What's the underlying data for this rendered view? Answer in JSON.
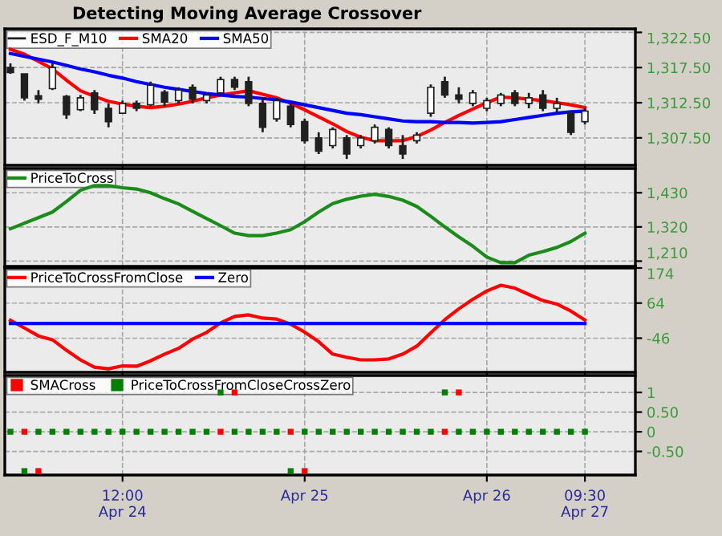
{
  "chart_data": [
    {
      "type": "candlestick",
      "title": "Detecting Moving Average Crossover",
      "ylim": [
        1303.6,
        1323
      ],
      "categories": [
        null,
        null,
        null,
        null,
        null,
        null,
        null,
        null,
        null,
        null,
        null,
        null,
        null,
        null,
        null,
        null,
        null,
        null,
        null,
        null,
        null,
        null,
        null,
        null,
        null,
        null,
        null,
        null,
        null,
        null,
        null,
        null,
        null,
        null,
        null,
        null,
        null,
        null,
        null,
        null,
        null,
        null
      ],
      "yticks": [
        {
          "value": 1307.5,
          "label": "1,307.50"
        },
        {
          "value": 1312.5,
          "label": "1,312.50"
        },
        {
          "value": 1317.5,
          "label": "1,317.50"
        },
        {
          "value": 1322.5,
          "label": "1,322.50"
        }
      ],
      "grid": true,
      "legend": "top left",
      "tick_labels": "y",
      "series": [
        {
          "name": "ESD_F_M10",
          "type": "candlestick",
          "color": "#202020",
          "ohlc": [
            [
              1317.5,
              1318.1,
              1316.6,
              1316.8
            ],
            [
              1316.6,
              1316.6,
              1312.8,
              1313.2
            ],
            [
              1313.5,
              1314.3,
              1312.4,
              1313.0
            ],
            [
              1314.5,
              1318.1,
              1314.3,
              1317.5
            ],
            [
              1313.4,
              1313.6,
              1310.2,
              1310.8
            ],
            [
              1311.5,
              1313.6,
              1311.3,
              1313.2
            ],
            [
              1313.9,
              1314.3,
              1310.9,
              1311.5
            ],
            [
              1311.7,
              1312.4,
              1309.0,
              1309.8
            ],
            [
              1311.0,
              1312.8,
              1310.9,
              1312.4
            ],
            [
              1312.4,
              1312.8,
              1311.3,
              1311.7
            ],
            [
              1312.2,
              1315.5,
              1312.0,
              1315.0
            ],
            [
              1314.0,
              1314.3,
              1312.0,
              1312.6
            ],
            [
              1312.8,
              1314.7,
              1312.4,
              1314.3
            ],
            [
              1314.7,
              1315.1,
              1312.4,
              1313.0
            ],
            [
              1312.8,
              1313.9,
              1312.4,
              1313.6
            ],
            [
              1313.9,
              1316.2,
              1313.6,
              1315.8
            ],
            [
              1315.8,
              1316.2,
              1314.3,
              1314.7
            ],
            [
              1315.5,
              1316.2,
              1312.0,
              1312.4
            ],
            [
              1312.4,
              1313.2,
              1308.3,
              1309.0
            ],
            [
              1310.2,
              1313.2,
              1309.8,
              1312.8
            ],
            [
              1312.0,
              1312.4,
              1309.0,
              1309.4
            ],
            [
              1309.8,
              1310.2,
              1306.7,
              1307.1
            ],
            [
              1307.5,
              1308.3,
              1305.2,
              1305.6
            ],
            [
              1306.4,
              1309.0,
              1306.0,
              1308.7
            ],
            [
              1307.5,
              1307.9,
              1304.5,
              1305.2
            ],
            [
              1306.4,
              1307.9,
              1306.0,
              1307.5
            ],
            [
              1307.1,
              1309.4,
              1306.7,
              1309.0
            ],
            [
              1308.7,
              1309.0,
              1306.0,
              1306.4
            ],
            [
              1306.4,
              1307.9,
              1304.5,
              1305.2
            ],
            [
              1307.1,
              1308.3,
              1306.7,
              1307.9
            ],
            [
              1311.0,
              1315.1,
              1310.5,
              1314.7
            ],
            [
              1315.5,
              1316.2,
              1313.2,
              1313.6
            ],
            [
              1313.6,
              1314.7,
              1312.4,
              1313.0
            ],
            [
              1312.4,
              1314.3,
              1312.0,
              1313.9
            ],
            [
              1311.7,
              1313.2,
              1311.3,
              1312.8
            ],
            [
              1312.4,
              1313.9,
              1312.0,
              1313.6
            ],
            [
              1313.9,
              1314.3,
              1312.0,
              1312.4
            ],
            [
              1312.4,
              1313.9,
              1311.7,
              1313.2
            ],
            [
              1313.6,
              1314.3,
              1311.3,
              1311.7
            ],
            [
              1311.7,
              1313.2,
              1310.9,
              1312.4
            ],
            [
              1311.0,
              1311.3,
              1307.9,
              1308.3
            ],
            [
              1309.8,
              1311.7,
              1309.4,
              1311.3
            ]
          ]
        },
        {
          "name": "SMA20",
          "type": "line",
          "color": "#ff0000",
          "values": [
            1320.1,
            1319.4,
            1318.4,
            1317.3,
            1315.7,
            1314.2,
            1313.4,
            1312.7,
            1312.3,
            1312.0,
            1311.8,
            1312.0,
            1312.3,
            1312.7,
            1313.2,
            1313.6,
            1313.9,
            1314.2,
            1313.7,
            1313.2,
            1312.4,
            1311.5,
            1310.5,
            1309.5,
            1308.4,
            1307.6,
            1307.1,
            1307.1,
            1307.1,
            1307.7,
            1308.6,
            1309.7,
            1310.7,
            1311.6,
            1312.5,
            1313.3,
            1313.2,
            1313.0,
            1312.8,
            1312.5,
            1312.2,
            1311.8
          ]
        },
        {
          "name": "SMA50",
          "type": "line",
          "color": "#0000ff",
          "values": [
            1319.5,
            1319.1,
            1318.7,
            1318.3,
            1317.8,
            1317.3,
            1316.9,
            1316.4,
            1316.0,
            1315.5,
            1315.1,
            1314.7,
            1314.4,
            1314.1,
            1313.8,
            1313.6,
            1313.4,
            1313.3,
            1313.1,
            1312.9,
            1312.6,
            1312.2,
            1311.8,
            1311.4,
            1311.0,
            1310.8,
            1310.5,
            1310.2,
            1309.9,
            1309.8,
            1309.8,
            1309.7,
            1309.7,
            1309.6,
            1309.7,
            1309.8,
            1310.1,
            1310.4,
            1310.7,
            1311.0,
            1311.2,
            1311.3
          ]
        }
      ]
    },
    {
      "type": "line",
      "ylim": [
        1193,
        1508
      ],
      "categories": [
        null,
        null,
        null,
        null,
        null,
        null,
        null,
        null,
        null,
        null,
        null,
        null,
        null,
        null,
        null,
        null,
        null,
        null,
        null,
        null,
        null,
        null,
        null,
        null,
        null,
        null,
        null,
        null,
        null,
        null,
        null,
        null,
        null,
        null,
        null,
        null,
        null,
        null,
        null,
        null,
        null,
        null
      ],
      "yticks": [
        {
          "value": 1210,
          "label": "1,210"
        },
        {
          "value": 1320,
          "label": "1,320"
        },
        {
          "value": 1430,
          "label": "1,430"
        }
      ],
      "grid": true,
      "legend": "top left",
      "tick_labels": "y",
      "series": [
        {
          "name": "PriceToCross",
          "color": "#1a8c1a",
          "values": [
            1314,
            1332,
            1350,
            1368,
            1402,
            1438,
            1453,
            1453,
            1446,
            1442,
            1430,
            1411,
            1394,
            1370,
            1347,
            1324,
            1300,
            1292,
            1292,
            1300,
            1311,
            1337,
            1368,
            1395,
            1409,
            1419,
            1425,
            1418,
            1406,
            1386,
            1354,
            1320,
            1288,
            1258,
            1223,
            1205,
            1205,
            1229,
            1241,
            1254,
            1273,
            1300
          ]
        }
      ]
    },
    {
      "type": "line",
      "ylim": [
        -153,
        174
      ],
      "categories": [
        null,
        null,
        null,
        null,
        null,
        null,
        null,
        null,
        null,
        null,
        null,
        null,
        null,
        null,
        null,
        null,
        null,
        null,
        null,
        null,
        null,
        null,
        null,
        null,
        null,
        null,
        null,
        null,
        null,
        null,
        null,
        null,
        null,
        null,
        null,
        null,
        null,
        null,
        null,
        null,
        null,
        null
      ],
      "yticks": [
        -46,
        64,
        174
      ],
      "grid": true,
      "legend": "top left",
      "tick_labels": "y",
      "series": [
        {
          "name": "PriceToCrossFromClose",
          "color": "#ff0000",
          "values": [
            10,
            -14,
            -39,
            -51,
            -84,
            -114,
            -137,
            -142,
            -133,
            -134,
            -117,
            -96,
            -78,
            -49,
            -28,
            2,
            22,
            27,
            17,
            14,
            -2,
            -27,
            -57,
            -96,
            -106,
            -114,
            -114,
            -111,
            -96,
            -71,
            -29,
            12,
            46,
            76,
            102,
            120,
            111,
            91,
            72,
            61,
            39,
            11
          ]
        },
        {
          "name": "Zero",
          "color": "#0000ff",
          "values": [
            0,
            0,
            0,
            0,
            0,
            0,
            0,
            0,
            0,
            0,
            0,
            0,
            0,
            0,
            0,
            0,
            0,
            0,
            0,
            0,
            0,
            0,
            0,
            0,
            0,
            0,
            0,
            0,
            0,
            0,
            0,
            0,
            0,
            0,
            0,
            0,
            0,
            0,
            0,
            0,
            0,
            0
          ]
        }
      ]
    },
    {
      "type": "scatter",
      "ylim": [
        -1.1,
        1.43
      ],
      "marker": "square",
      "categories": [
        null,
        null,
        null,
        null,
        null,
        null,
        null,
        null,
        "12:00\nApr 24",
        null,
        null,
        null,
        null,
        null,
        null,
        null,
        null,
        null,
        null,
        null,
        null,
        "Apr 25",
        null,
        null,
        null,
        null,
        null,
        null,
        null,
        null,
        null,
        null,
        null,
        null,
        "Apr 26",
        null,
        null,
        null,
        null,
        null,
        null,
        "09:30\nApr 27"
      ],
      "yticks": [
        {
          "value": -0.5,
          "label": "-0.50"
        },
        0,
        {
          "value": 0.5,
          "label": "0.50"
        },
        1
      ],
      "grid": true,
      "legend": "top left",
      "series": [
        {
          "name": "SMACross",
          "color": "#ff0000",
          "values": [
            null,
            0,
            -1,
            null,
            null,
            null,
            null,
            null,
            null,
            null,
            null,
            null,
            null,
            null,
            null,
            0,
            1,
            null,
            null,
            null,
            0,
            -1,
            null,
            null,
            null,
            null,
            null,
            null,
            null,
            null,
            null,
            0,
            1,
            null,
            null,
            null,
            null,
            null,
            null,
            null,
            null,
            null
          ]
        },
        {
          "name": "PriceToCrossFromCloseCrossZero",
          "color": "#008000",
          "values": [
            0,
            -1,
            0,
            0,
            0,
            0,
            0,
            0,
            0,
            0,
            0,
            0,
            0,
            0,
            0,
            1,
            0,
            0,
            0,
            0,
            -1,
            0,
            0,
            0,
            0,
            0,
            0,
            0,
            0,
            0,
            0,
            1,
            0,
            0,
            0,
            0,
            0,
            0,
            0,
            0,
            0,
            0
          ]
        }
      ]
    }
  ]
}
